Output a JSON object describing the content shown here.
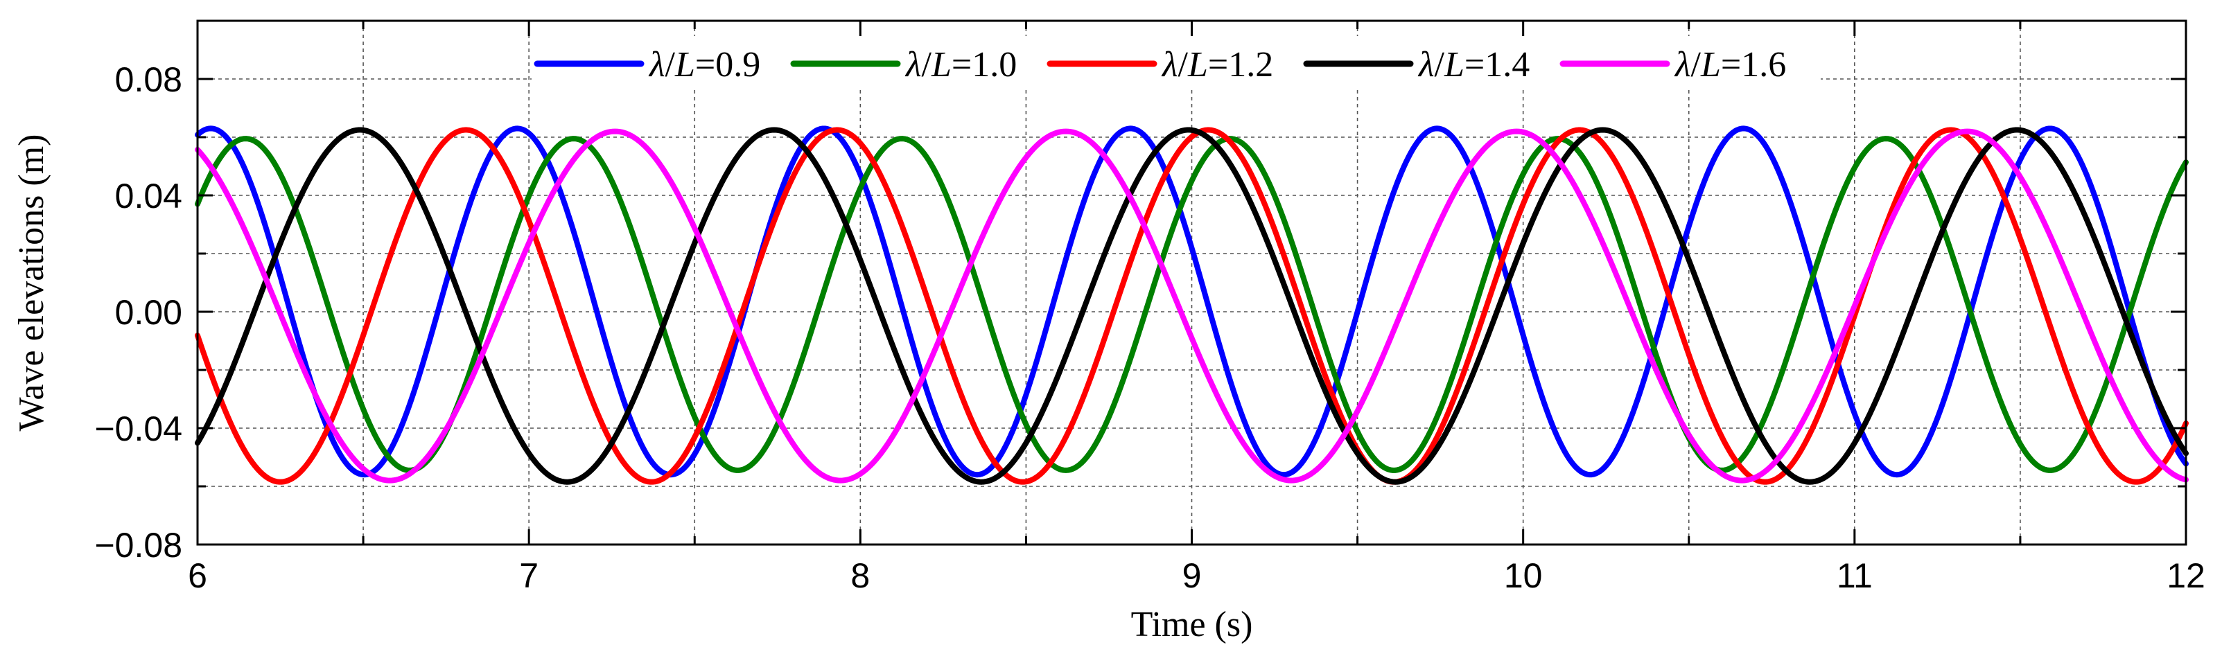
{
  "chart_data": {
    "type": "line",
    "title": "",
    "xlabel": "Time (s)",
    "ylabel": "Wave elevations (m)",
    "xlim": [
      6,
      12
    ],
    "ylim": [
      -0.08,
      0.1
    ],
    "x_ticks": [
      6,
      7,
      8,
      9,
      10,
      11,
      12
    ],
    "x_tick_labels": [
      "6",
      "7",
      "8",
      "9",
      "10",
      "11",
      "12"
    ],
    "y_ticks": [
      -0.08,
      -0.04,
      0.0,
      0.04,
      0.08
    ],
    "y_tick_labels": [
      "−0.08",
      "−0.04",
      "0.00",
      "0.04",
      "0.08"
    ],
    "grid": true,
    "legend_position": "top",
    "series": [
      {
        "name": "0.9",
        "color": "#0000ff",
        "amplitude": 0.0595,
        "offset": 0.0035,
        "period": 0.925,
        "crest_time": 6.04
      },
      {
        "name": "1.0",
        "color": "#008000",
        "amplitude": 0.057,
        "offset": 0.0025,
        "period": 0.99,
        "crest_time": 6.145
      },
      {
        "name": "1.2",
        "color": "#ff0000",
        "amplitude": 0.0605,
        "offset": 0.002,
        "period": 1.12,
        "crest_time": 6.81
      },
      {
        "name": "1.4",
        "color": "#000000",
        "amplitude": 0.0605,
        "offset": 0.002,
        "period": 1.25,
        "crest_time": 6.49
      },
      {
        "name": "1.6",
        "color": "#ff00ff",
        "amplitude": 0.06,
        "offset": 0.002,
        "period": 1.36,
        "crest_time": 7.26
      }
    ]
  }
}
